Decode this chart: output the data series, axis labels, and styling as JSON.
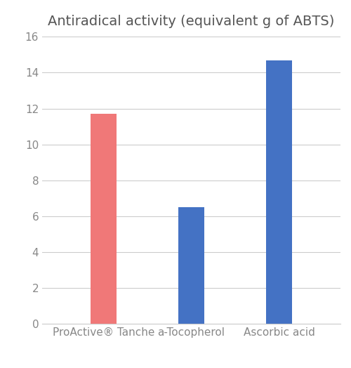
{
  "title": "Antiradical activity (equivalent g of ABTS)",
  "categories": [
    "ProActive® Tanche",
    "a-Tocopherol",
    "Ascorbic acid"
  ],
  "values": [
    11.7,
    6.5,
    14.7
  ],
  "bar_colors": [
    "#f07878",
    "#4472c4",
    "#4472c4"
  ],
  "ylim": [
    0,
    16
  ],
  "yticks": [
    0,
    2,
    4,
    6,
    8,
    10,
    12,
    14,
    16
  ],
  "background_color": "#ffffff",
  "title_fontsize": 14,
  "tick_fontsize": 11,
  "xtick_fontsize": 11,
  "bar_width": 0.3,
  "grid_color": "#cccccc",
  "tick_color": "#888888",
  "title_color": "#555555"
}
